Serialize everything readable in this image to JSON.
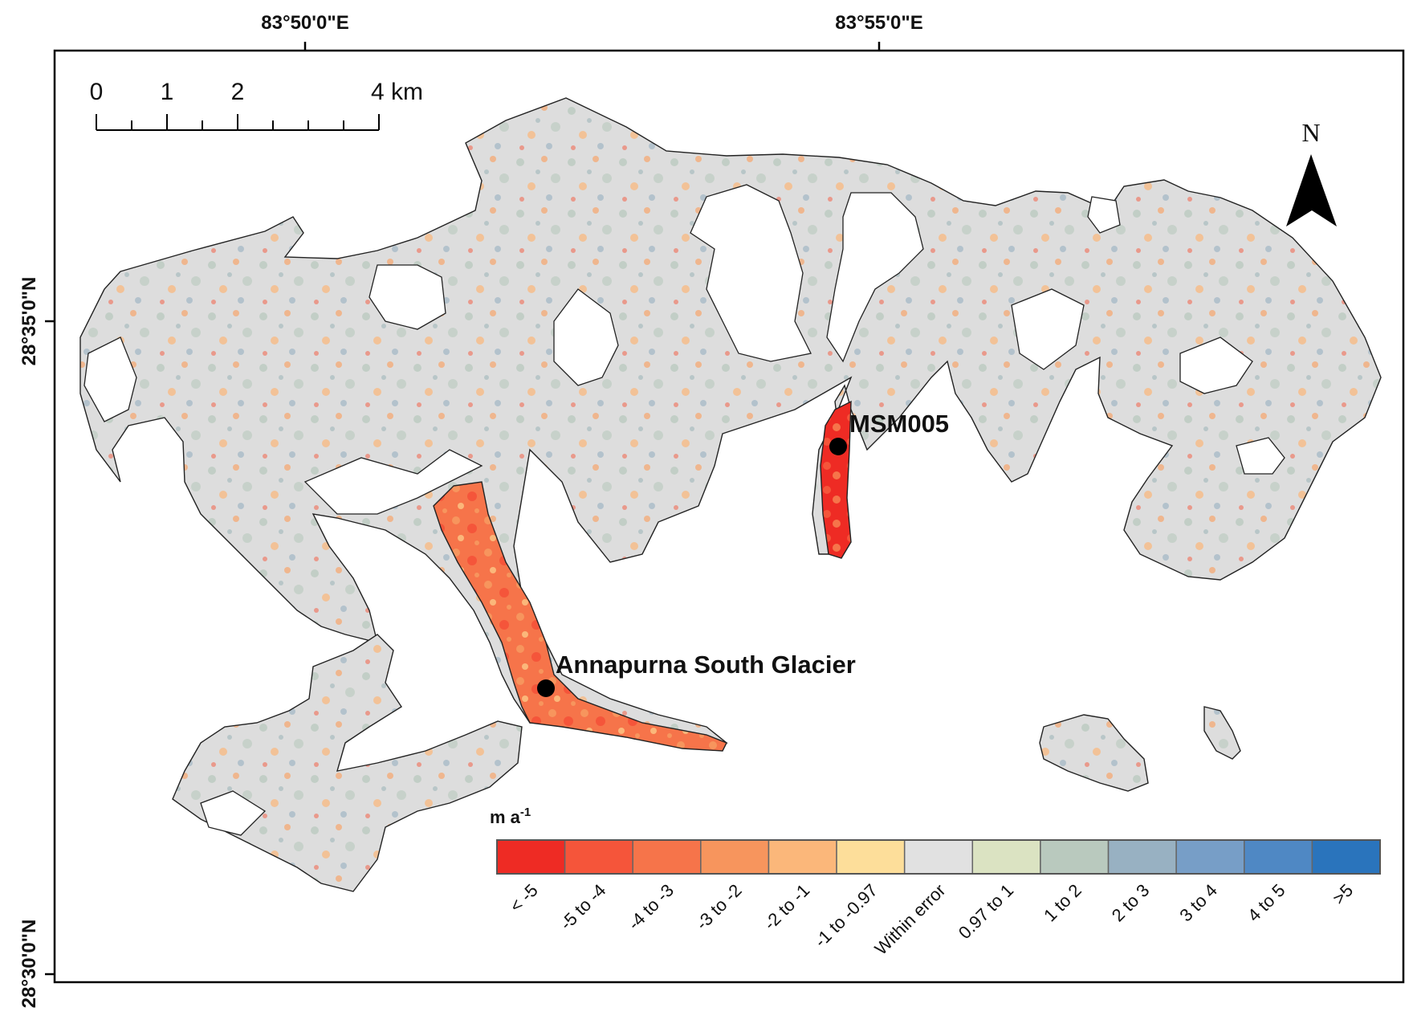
{
  "map": {
    "top_axis_labels": [
      "83°50'0\"E",
      "83°55'0\"E"
    ],
    "left_axis_labels": [
      "28°35'0\"N",
      "28°30'0\"N"
    ],
    "scale_bar": {
      "labels": [
        "0",
        "1",
        "2",
        "4 km"
      ]
    },
    "north_arrow": {
      "label": "N"
    },
    "places": [
      {
        "name": "MSM005"
      },
      {
        "name": "Annapurna South Glacier"
      }
    ],
    "legend": {
      "unit": "m a",
      "unit_exp": "-1",
      "classes": [
        {
          "label": "< -5",
          "color": "#ee2b24"
        },
        {
          "label": "-5 to -4",
          "color": "#f5553a"
        },
        {
          "label": "-4 to -3",
          "color": "#f6744a"
        },
        {
          "label": "-3 to -2",
          "color": "#f7955d"
        },
        {
          "label": "-2 to -1",
          "color": "#fbb77a"
        },
        {
          "label": "-1 to -0.97",
          "color": "#fdde9a"
        },
        {
          "label": "Within error",
          "color": "#e1e1e1"
        },
        {
          "label": "0.97 to 1",
          "color": "#dbe3c2"
        },
        {
          "label": "1 to 2",
          "color": "#b9c9be"
        },
        {
          "label": "2 to 3",
          "color": "#98b1c2"
        },
        {
          "label": "3 to 4",
          "color": "#779ec7"
        },
        {
          "label": "4 to 5",
          "color": "#4f88c4"
        },
        {
          "label": ">5",
          "color": "#2a74bc"
        }
      ]
    }
  }
}
